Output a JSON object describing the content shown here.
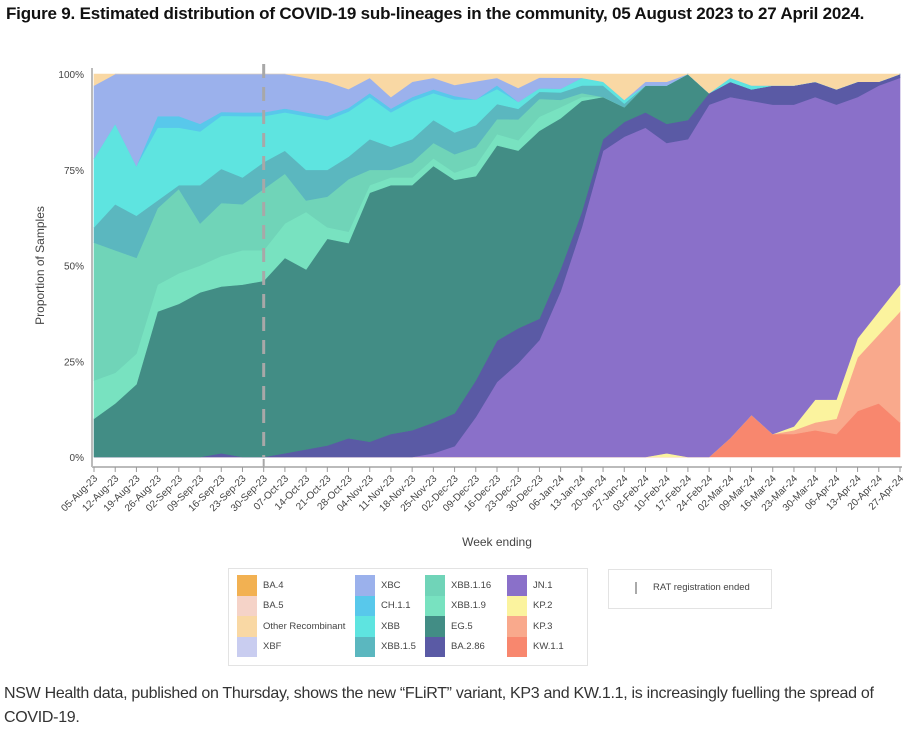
{
  "figure": {
    "title": "Figure 9. Estimated distribution of COVID-19 sub-lineages in the community, 05 August 2023 to 27 April 2024."
  },
  "caption": "NSW Health data, published on Thursday, shows the new “FLiRT” variant, KP3 and KW.1.1, is increasingly fuelling the spread of COVID-19.",
  "chart_data": {
    "type": "area",
    "stacked": true,
    "normalized": true,
    "title": "Figure 9. Estimated distribution of COVID-19 sub-lineages in the community, 05 August 2023 to 27 April 2024.",
    "xlabel": "Week ending",
    "ylabel": "Proportion of Samples",
    "ylim": [
      0,
      100
    ],
    "yticks": [
      "0%",
      "25%",
      "50%",
      "75%",
      "100%"
    ],
    "grid": false,
    "legend_position": "bottom",
    "annotation": {
      "type": "vertical-dashed-line",
      "x": "30-Sep-23",
      "label": "RAT registration ended"
    },
    "x": [
      "05-Aug-23",
      "12-Aug-23",
      "19-Aug-23",
      "26-Aug-23",
      "02-Sep-23",
      "09-Sep-23",
      "16-Sep-23",
      "23-Sep-23",
      "30-Sep-23",
      "07-Oct-23",
      "14-Oct-23",
      "21-Oct-23",
      "28-Oct-23",
      "04-Nov-23",
      "11-Nov-23",
      "18-Nov-23",
      "25-Nov-23",
      "02-Dec-23",
      "09-Dec-23",
      "16-Dec-23",
      "23-Dec-23",
      "30-Dec-23",
      "06-Jan-24",
      "13-Jan-24",
      "20-Jan-24",
      "27-Jan-24",
      "03-Feb-24",
      "10-Feb-24",
      "17-Feb-24",
      "24-Feb-24",
      "02-Mar-24",
      "09-Mar-24",
      "16-Mar-24",
      "23-Mar-24",
      "30-Mar-24",
      "06-Apr-24",
      "13-Apr-24",
      "20-Apr-24",
      "27-Apr-24"
    ],
    "series": [
      {
        "name": "KW.1.1",
        "color": "#f8876e",
        "values": [
          0,
          0,
          0,
          0,
          0,
          0,
          0,
          0,
          0,
          0,
          0,
          0,
          0,
          0,
          0,
          0,
          0,
          0,
          0,
          0,
          0,
          0,
          0,
          0,
          0,
          0,
          0,
          0,
          0,
          0,
          5,
          11,
          6,
          6,
          7,
          6,
          12,
          14,
          9
        ]
      },
      {
        "name": "KP.3",
        "color": "#f9a98c",
        "values": [
          0,
          0,
          0,
          0,
          0,
          0,
          0,
          0,
          0,
          0,
          0,
          0,
          0,
          0,
          0,
          0,
          0,
          0,
          0,
          0,
          0,
          0,
          0,
          0,
          0,
          0,
          0,
          0,
          0,
          0,
          0,
          0,
          0,
          1,
          2,
          4,
          14,
          18,
          29
        ]
      },
      {
        "name": "KP.2",
        "color": "#fbf39e",
        "values": [
          0,
          0,
          0,
          0,
          0,
          0,
          0,
          0,
          0,
          0,
          0,
          0,
          0,
          0,
          0,
          0,
          0,
          0,
          0,
          0,
          0,
          0,
          0,
          0,
          0,
          0,
          0,
          1,
          0,
          0,
          0,
          0,
          0,
          1,
          6,
          5,
          5,
          6,
          7
        ]
      },
      {
        "name": "JN.1",
        "color": "#8a70c9",
        "values": [
          0,
          0,
          0,
          0,
          0,
          0,
          0,
          0,
          0,
          0,
          0,
          0,
          0,
          0,
          0,
          0,
          1,
          3,
          11,
          20,
          27,
          33,
          45,
          60,
          80,
          87,
          86,
          81,
          83,
          92,
          89,
          82,
          86,
          84,
          79,
          77,
          63,
          59,
          54
        ]
      },
      {
        "name": "BA.2.86",
        "color": "#5a5aa5",
        "values": [
          0,
          0,
          0,
          0,
          0,
          0,
          1,
          0,
          0,
          1,
          2,
          3,
          5,
          4,
          6,
          7,
          8,
          9,
          10,
          11,
          10,
          6,
          6,
          4,
          3,
          4,
          4,
          5,
          5,
          3,
          4,
          3,
          5,
          5,
          4,
          4,
          4,
          1,
          1
        ]
      },
      {
        "name": "EG.5",
        "color": "#428d85",
        "values": [
          10,
          14,
          19,
          38,
          40,
          43,
          44,
          45,
          46,
          51,
          47,
          54,
          52,
          65,
          65,
          64,
          67,
          64,
          56,
          52,
          51,
          53,
          41,
          29,
          11,
          4,
          7,
          10,
          12,
          0,
          0,
          0,
          0,
          0,
          0,
          0,
          0,
          0,
          0
        ]
      },
      {
        "name": "XBB.1.9",
        "color": "#78e2c0",
        "values": [
          10,
          8,
          8,
          7,
          8,
          7,
          8,
          9,
          8,
          9,
          15,
          3,
          3,
          2,
          2,
          2,
          2,
          2,
          3,
          3,
          3,
          4,
          3,
          1,
          0,
          0,
          0,
          0,
          0,
          0,
          0,
          0,
          0,
          0,
          0,
          0,
          0,
          0,
          0
        ]
      },
      {
        "name": "XBB.1.16",
        "color": "#70d4b8",
        "values": [
          36,
          32,
          25,
          20,
          22,
          11,
          14,
          12,
          16,
          13,
          3,
          8,
          14,
          4,
          2,
          4,
          4,
          5,
          5,
          4,
          6,
          5,
          2,
          1,
          0,
          0,
          0,
          0,
          0,
          0,
          0,
          0,
          0,
          0,
          0,
          0,
          0,
          0,
          0
        ]
      },
      {
        "name": "XBB.1.5",
        "color": "#5bb7bf",
        "values": [
          4,
          12,
          11,
          2,
          1,
          10,
          9,
          7,
          7,
          6,
          8,
          7,
          6,
          8,
          6,
          6,
          6,
          6,
          6,
          4,
          3,
          2,
          2,
          2,
          3,
          1,
          0,
          0,
          0,
          0,
          0,
          0,
          0,
          0,
          0,
          0,
          0,
          0,
          0
        ]
      },
      {
        "name": "XBB",
        "color": "#5ee4e0",
        "values": [
          18,
          21,
          13,
          19,
          15,
          14,
          14,
          16,
          12,
          10,
          14,
          13,
          12,
          11,
          9,
          10,
          7,
          9,
          7,
          4,
          2,
          1,
          1,
          2,
          1,
          1,
          0,
          0,
          0,
          0,
          1,
          1,
          0,
          0,
          0,
          0,
          0,
          0,
          0
        ]
      },
      {
        "name": "CH.1.1",
        "color": "#58c8eb",
        "values": [
          0,
          0,
          0,
          3,
          3,
          2,
          1,
          1,
          1,
          1,
          1,
          1,
          1,
          1,
          1,
          1,
          1,
          1,
          0,
          1,
          0,
          0,
          0,
          0,
          0,
          0,
          0,
          0,
          0,
          0,
          0,
          0,
          0,
          0,
          0,
          0,
          0,
          0,
          0
        ]
      },
      {
        "name": "XBC",
        "color": "#9bb1ec",
        "values": [
          19,
          13,
          24,
          11,
          11,
          13,
          10,
          10,
          10,
          9,
          9,
          9,
          5,
          4,
          3,
          4,
          3,
          3,
          5,
          2,
          4,
          3,
          3,
          0,
          0,
          0,
          1,
          1,
          0,
          0,
          0,
          0,
          0,
          0,
          0,
          0,
          0,
          0,
          0
        ]
      },
      {
        "name": "XBF",
        "color": "#c9cdf0",
        "values": [
          0,
          0,
          0,
          0,
          0,
          0,
          0,
          0,
          0,
          0,
          0,
          0,
          0,
          0,
          0,
          0,
          0,
          0,
          0,
          0,
          0,
          0,
          0,
          0,
          0,
          0,
          0,
          0,
          0,
          0,
          0,
          0,
          0,
          0,
          0,
          0,
          0,
          0,
          0
        ]
      },
      {
        "name": "Other Recombinant",
        "color": "#f9d8a4",
        "values": [
          3,
          0,
          0,
          0,
          0,
          0,
          0,
          0,
          0,
          0,
          1,
          2,
          4,
          1,
          6,
          2,
          1,
          3,
          2,
          1,
          4,
          1,
          1,
          1,
          2,
          7,
          2,
          2,
          0,
          5,
          1,
          3,
          3,
          3,
          2,
          4,
          2,
          2,
          0
        ]
      },
      {
        "name": "BA.5",
        "color": "#f5d3c8",
        "values": [
          0,
          0,
          0,
          0,
          0,
          0,
          0,
          0,
          0,
          0,
          0,
          0,
          0,
          0,
          0,
          0,
          0,
          0,
          0,
          0,
          0,
          0,
          0,
          0,
          0,
          0,
          0,
          0,
          0,
          0,
          0,
          0,
          0,
          0,
          0,
          0,
          0,
          0,
          0
        ]
      },
      {
        "name": "BA.4",
        "color": "#f2b152",
        "values": [
          0,
          0,
          0,
          0,
          0,
          0,
          0,
          0,
          0,
          0,
          0,
          0,
          0,
          0,
          0,
          0,
          0,
          0,
          0,
          0,
          0,
          0,
          0,
          0,
          0,
          0,
          0,
          0,
          0,
          0,
          0,
          0,
          0,
          0,
          0,
          0,
          0,
          0,
          0
        ]
      }
    ]
  },
  "legend": {
    "columns": [
      [
        {
          "label": "BA.4",
          "color": "#f2b152"
        },
        {
          "label": "BA.5",
          "color": "#f5d3c8"
        },
        {
          "label": "Other Recombinant",
          "color": "#f9d8a4"
        },
        {
          "label": "XBF",
          "color": "#c9cdf0"
        }
      ],
      [
        {
          "label": "XBC",
          "color": "#9bb1ec"
        },
        {
          "label": "CH.1.1",
          "color": "#58c8eb"
        },
        {
          "label": "XBB",
          "color": "#5ee4e0"
        },
        {
          "label": "XBB.1.5",
          "color": "#5bb7bf"
        }
      ],
      [
        {
          "label": "XBB.1.16",
          "color": "#70d4b8"
        },
        {
          "label": "XBB.1.9",
          "color": "#78e2c0"
        },
        {
          "label": "EG.5",
          "color": "#428d85"
        },
        {
          "label": "BA.2.86",
          "color": "#5a5aa5"
        }
      ],
      [
        {
          "label": "JN.1",
          "color": "#8a70c9"
        },
        {
          "label": "KP.2",
          "color": "#fbf39e"
        },
        {
          "label": "KP.3",
          "color": "#f9a98c"
        },
        {
          "label": "KW.1.1",
          "color": "#f8876e"
        }
      ]
    ],
    "rat_label": "RAT registration ended"
  }
}
